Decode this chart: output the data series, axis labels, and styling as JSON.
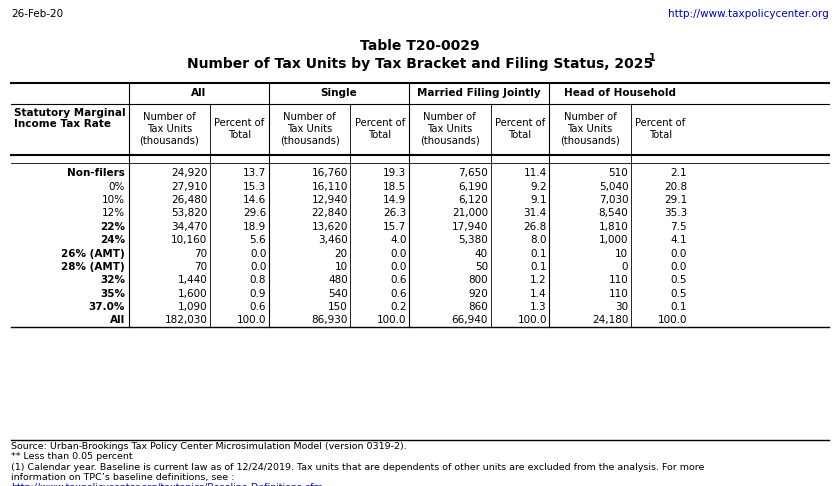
{
  "title_line1": "Table T20-0029",
  "title_line2": "Number of Tax Units by Tax Bracket and Filing Status, 2025",
  "title_superscript": "1",
  "date_label": "26-Feb-20",
  "url_label": "http://www.taxpolicycenter.org",
  "col_groups": [
    "All",
    "Single",
    "Married Filing Jointly",
    "Head of Household"
  ],
  "col_headers": [
    "Number of\nTax Units\n(thousands)",
    "Percent of\nTotal",
    "Number of\nTax Units\n(thousands)",
    "Percent of\nTotal",
    "Number of\nTax Units\n(thousands)",
    "Percent of\nTotal",
    "Number of\nTax Units\n(thousands)",
    "Percent of\nTotal"
  ],
  "row_header": "Statutory Marginal\nIncome Tax Rate",
  "rows": [
    [
      "Non-filers",
      "24,920",
      "13.7",
      "16,760",
      "19.3",
      "7,650",
      "11.4",
      "510",
      "2.1"
    ],
    [
      "0%",
      "27,910",
      "15.3",
      "16,110",
      "18.5",
      "6,190",
      "9.2",
      "5,040",
      "20.8"
    ],
    [
      "10%",
      "26,480",
      "14.6",
      "12,940",
      "14.9",
      "6,120",
      "9.1",
      "7,030",
      "29.1"
    ],
    [
      "12%",
      "53,820",
      "29.6",
      "22,840",
      "26.3",
      "21,000",
      "31.4",
      "8,540",
      "35.3"
    ],
    [
      "22%",
      "34,470",
      "18.9",
      "13,620",
      "15.7",
      "17,940",
      "26.8",
      "1,810",
      "7.5"
    ],
    [
      "24%",
      "10,160",
      "5.6",
      "3,460",
      "4.0",
      "5,380",
      "8.0",
      "1,000",
      "4.1"
    ],
    [
      "26% (AMT)",
      "70",
      "0.0",
      "20",
      "0.0",
      "40",
      "0.1",
      "10",
      "0.0"
    ],
    [
      "28% (AMT)",
      "70",
      "0.0",
      "10",
      "0.0",
      "50",
      "0.1",
      "0",
      "0.0"
    ],
    [
      "32%",
      "1,440",
      "0.8",
      "480",
      "0.6",
      "800",
      "1.2",
      "110",
      "0.5"
    ],
    [
      "35%",
      "1,600",
      "0.9",
      "540",
      "0.6",
      "920",
      "1.4",
      "110",
      "0.5"
    ],
    [
      "37.0%",
      "1,090",
      "0.6",
      "150",
      "0.2",
      "860",
      "1.3",
      "30",
      "0.1"
    ],
    [
      "All",
      "182,030",
      "100.0",
      "86,930",
      "100.0",
      "66,940",
      "100.0",
      "24,180",
      "100.0"
    ]
  ],
  "bold_row_labels": [
    "Non-filers",
    "22%",
    "24%",
    "26% (AMT)",
    "28% (AMT)",
    "32%",
    "35%",
    "37.0%",
    "All"
  ],
  "footer_lines": [
    "Source: Urban-Brookings Tax Policy Center Microsimulation Model (version 0319-2).",
    "** Less than 0.05 percent",
    "(1) Calendar year. Baseline is current law as of 12/24/2019. Tax units that are dependents of other units are excluded from the analysis. For more",
    "information on TPC’s baseline definitions, see :",
    "http://www.taxpolicycenter.org/taxtopics/Baseline-Definitions.cfm"
  ],
  "footer_link_idx": 4,
  "bg_color": "#FFFFFF",
  "border_color": "#000000",
  "text_color": "#000000",
  "link_color": "#0000CC",
  "table_font_size": 7.5,
  "header_font_size": 7.5,
  "title_font_size": 10,
  "footer_font_size": 6.8
}
